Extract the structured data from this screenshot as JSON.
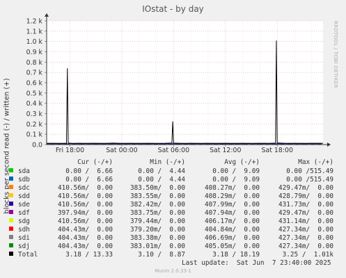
{
  "chart_data": {
    "type": "line",
    "title": "IOstat - by day",
    "ylabel": "blocks per second read (-) / written (+)",
    "ylim": [
      0,
      1200
    ],
    "yticks": [
      "0.0",
      "0.1 k",
      "0.2 k",
      "0.3 k",
      "0.4 k",
      "0.5 k",
      "0.6 k",
      "0.7 k",
      "0.8 k",
      "0.9 k",
      "1.0 k",
      "1.1 k",
      "1.2 k"
    ],
    "ytick_values": [
      0,
      100,
      200,
      300,
      400,
      500,
      600,
      700,
      800,
      900,
      1000,
      1100,
      1200
    ],
    "xlim_hours": [
      15.3,
      47.3
    ],
    "xticks": [
      {
        "label": "Fri 18:00",
        "hour": 18
      },
      {
        "label": "Sat 00:00",
        "hour": 24
      },
      {
        "label": "Sat 06:00",
        "hour": 30
      },
      {
        "label": "Sat 12:00",
        "hour": 36
      },
      {
        "label": "Sat 18:00",
        "hour": 42
      }
    ],
    "grid": true,
    "series": [
      {
        "name": "Total",
        "color": "#000000",
        "points": [
          [
            15.3,
            13
          ],
          [
            17.6,
            12
          ],
          [
            17.7,
            740
          ],
          [
            17.8,
            15
          ],
          [
            18.2,
            12
          ],
          [
            19,
            13
          ],
          [
            20,
            12
          ],
          [
            21,
            13
          ],
          [
            22,
            12
          ],
          [
            23,
            14
          ],
          [
            24,
            12
          ],
          [
            25,
            13
          ],
          [
            26,
            12
          ],
          [
            27,
            13
          ],
          [
            28,
            12
          ],
          [
            29,
            13
          ],
          [
            29.8,
            15
          ],
          [
            29.9,
            225
          ],
          [
            30.0,
            14
          ],
          [
            31,
            12
          ],
          [
            32,
            13
          ],
          [
            33,
            12
          ],
          [
            34,
            13
          ],
          [
            35,
            12
          ],
          [
            36,
            13
          ],
          [
            37,
            12
          ],
          [
            38,
            13
          ],
          [
            39,
            12
          ],
          [
            40,
            13
          ],
          [
            41,
            12
          ],
          [
            41.8,
            14
          ],
          [
            41.9,
            1010
          ],
          [
            42.0,
            16
          ],
          [
            43,
            12
          ],
          [
            44,
            13
          ],
          [
            45,
            12
          ],
          [
            46,
            13
          ],
          [
            47.3,
            13
          ]
        ]
      }
    ]
  },
  "legend": {
    "headers": [
      "Cur (-/+)",
      "Min (-/+)",
      "Avg (-/+)",
      "Max (-/+)"
    ],
    "rows": [
      {
        "name": "sda",
        "color": "#00cc00",
        "cur": "0.00 /  6.66",
        "min": "0.00 /  4.44",
        "avg": "0.00 /  9.09",
        "max": "0.00 /515.49"
      },
      {
        "name": "sdb",
        "color": "#0066b3",
        "cur": "0.00 /  6.66",
        "min": "0.00 /  4.44",
        "avg": "0.00 /  9.09",
        "max": "0.00 /515.49"
      },
      {
        "name": "sdc",
        "color": "#ff8000",
        "cur": "410.56m/  0.00",
        "min": "383.50m/  0.00",
        "avg": "408.27m/  0.00",
        "max": "429.47m/  0.00"
      },
      {
        "name": "sdd",
        "color": "#ffcc00",
        "cur": "410.56m/  0.00",
        "min": "383.55m/  0.00",
        "avg": "408.29m/  0.00",
        "max": "428.79m/  0.00"
      },
      {
        "name": "sde",
        "color": "#330099",
        "cur": "410.56m/  0.00",
        "min": "382.42m/  0.00",
        "avg": "407.99m/  0.00",
        "max": "431.73m/  0.00"
      },
      {
        "name": "sdf",
        "color": "#990099",
        "cur": "397.94m/  0.00",
        "min": "383.75m/  0.00",
        "avg": "407.94m/  0.00",
        "max": "429.47m/  0.00"
      },
      {
        "name": "sdg",
        "color": "#ccff00",
        "cur": "410.56m/  0.00",
        "min": "379.44m/  0.00",
        "avg": "406.17m/  0.00",
        "max": "431.14m/  0.00"
      },
      {
        "name": "sdh",
        "color": "#ff0000",
        "cur": "404.43m/  0.00",
        "min": "379.20m/  0.00",
        "avg": "404.84m/  0.00",
        "max": "427.34m/  0.00"
      },
      {
        "name": "sdi",
        "color": "#808080",
        "cur": "404.43m/  0.00",
        "min": "383.38m/  0.00",
        "avg": "406.69m/  0.00",
        "max": "427.34m/  0.00"
      },
      {
        "name": "sdj",
        "color": "#008f00",
        "cur": "404.43m/  0.00",
        "min": "383.01m/  0.00",
        "avg": "405.05m/  0.00",
        "max": "427.34m/  0.00"
      },
      {
        "name": "Total",
        "color": "#000000",
        "cur": "3.18 / 13.33",
        "min": "3.10 /  8.87",
        "avg": "3.18 / 18.19",
        "max": "3.25 /  1.01k"
      }
    ]
  },
  "footer": {
    "last_update": "Last update:  Sat Jun  7 23:40:00 2025",
    "munin": "Munin 2.0.33-1"
  },
  "side_label": "RRDTOOL / TOBI OETIKER"
}
